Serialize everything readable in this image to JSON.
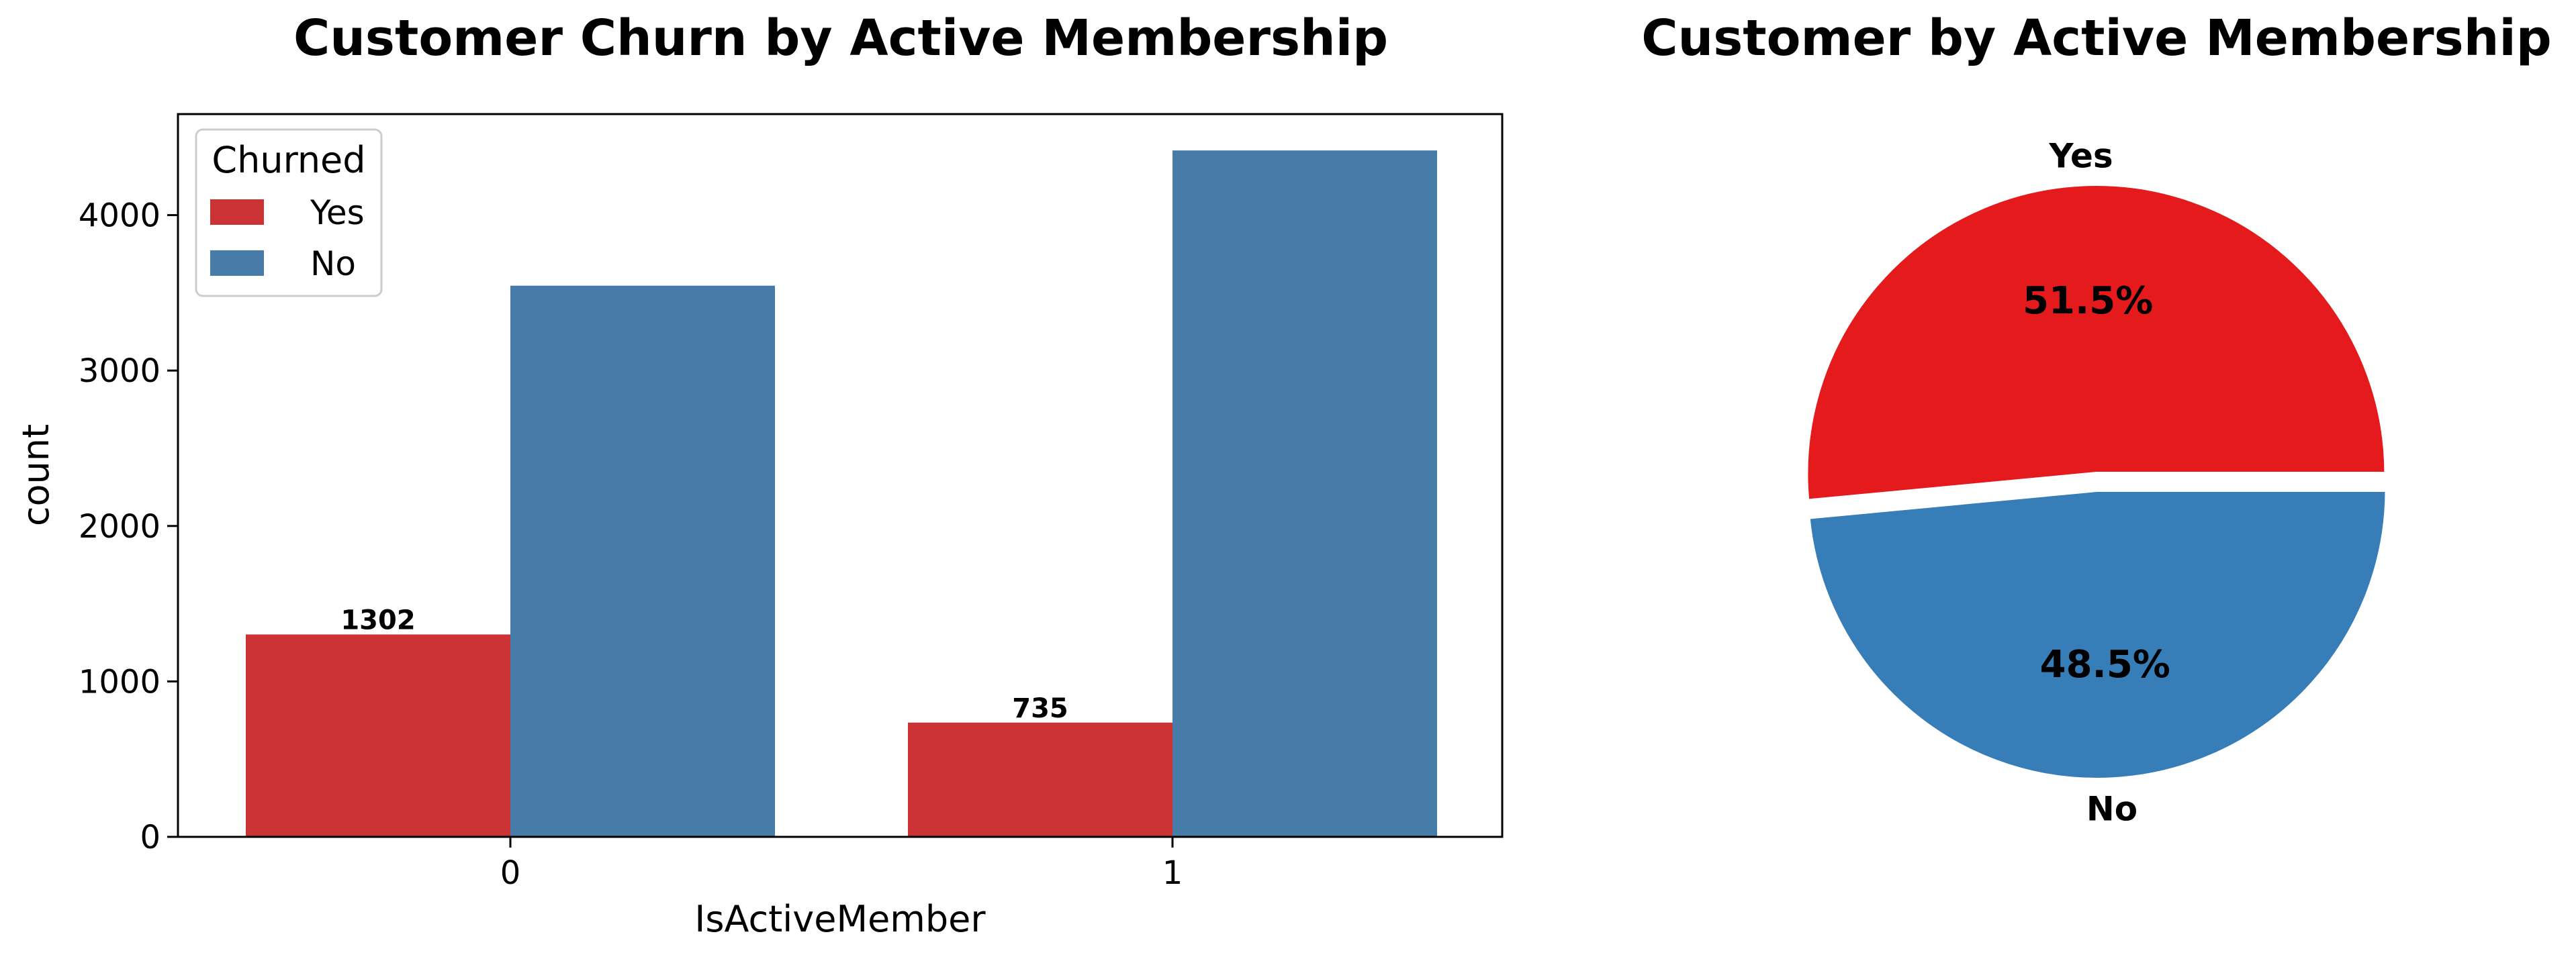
{
  "colors": {
    "yes_bar": "#cb3335",
    "no_bar": "#477ca8",
    "yes_pie": "#e41a1c",
    "no_pie": "#377eb8"
  },
  "chart_data": [
    {
      "type": "bar",
      "title": "Customer Churn by Active Membership",
      "xlabel": "IsActiveMember",
      "ylabel": "count",
      "categories": [
        "0",
        "1"
      ],
      "ylim": [
        0,
        4650
      ],
      "yticks": [
        0,
        1000,
        2000,
        3000,
        4000
      ],
      "legend": {
        "title": "Churned",
        "position": "top-left"
      },
      "series": [
        {
          "name": "Yes",
          "values": [
            1302,
            735
          ],
          "labels": [
            "1302",
            "735"
          ]
        },
        {
          "name": "No",
          "values": [
            3546,
            4416
          ]
        }
      ]
    },
    {
      "type": "pie",
      "title": "Customer by Active Membership",
      "labels": [
        "Yes",
        "No"
      ],
      "values": [
        51.5,
        48.5
      ],
      "pct_labels": [
        "51.5%",
        "48.5%"
      ]
    }
  ]
}
